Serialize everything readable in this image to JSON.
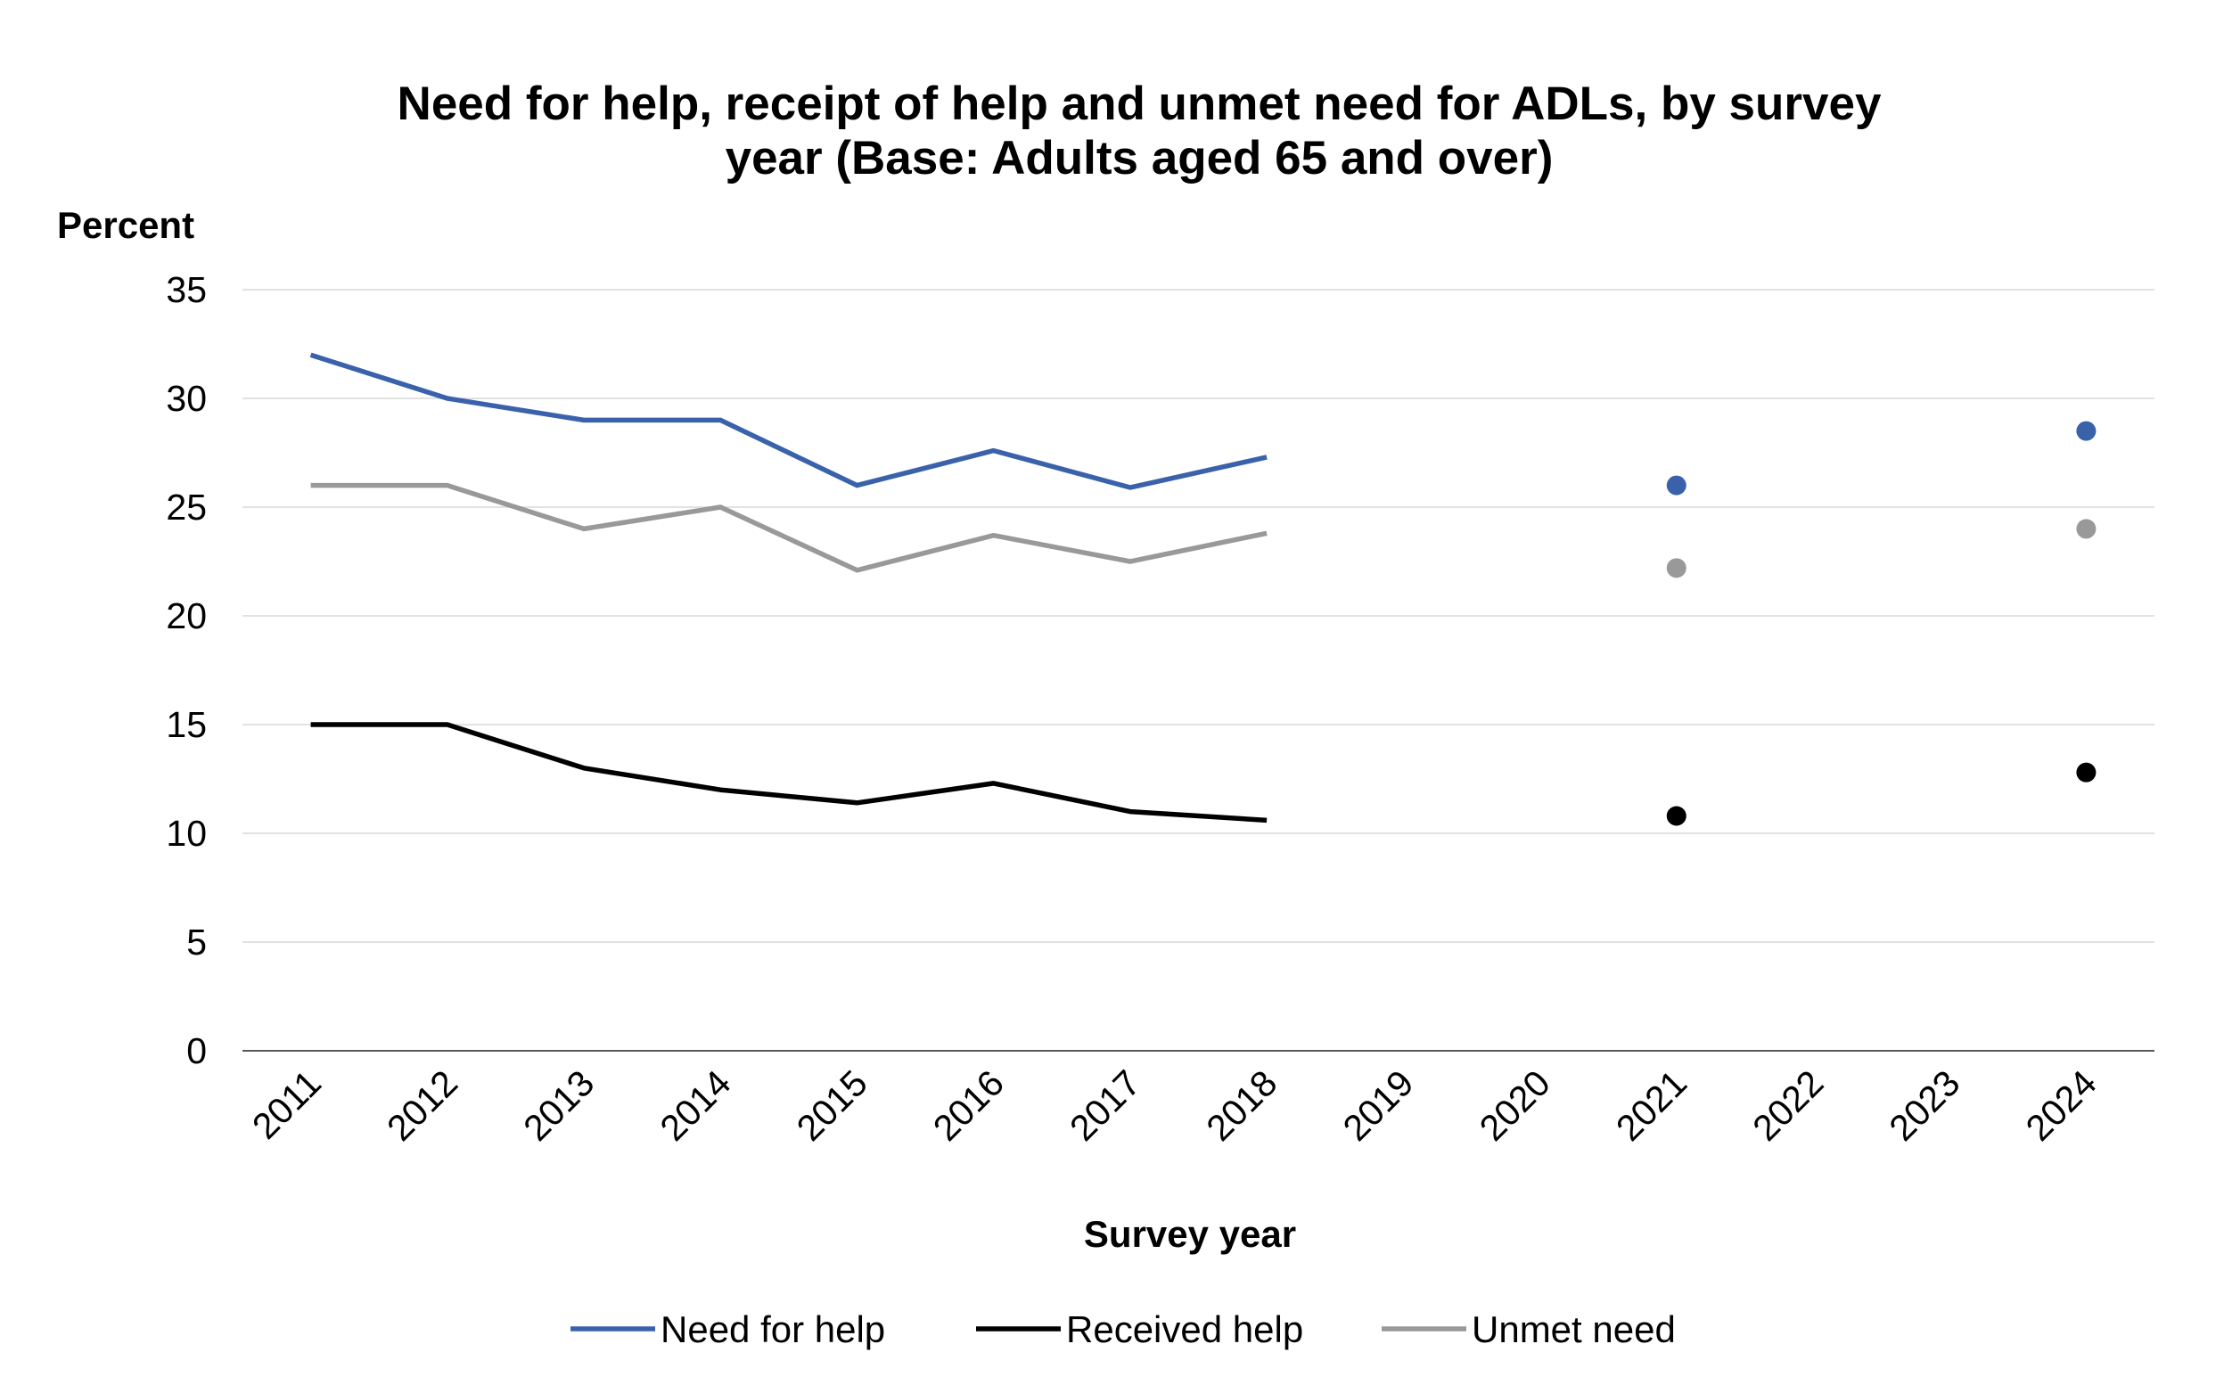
{
  "chart_data": {
    "type": "line",
    "title": "Need for help, receipt of help and unmet need for ADLs, by survey year (Base: Adults aged 65 and over)",
    "title_lines": [
      "Need for help, receipt of help and unmet need for ADLs, by survey",
      "year (Base: Adults aged 65 and over)"
    ],
    "xlabel": "Survey year",
    "ylabel": "Percent",
    "ylim": [
      0,
      35
    ],
    "yticks": [
      0,
      5,
      10,
      15,
      20,
      25,
      30,
      35
    ],
    "grid": true,
    "legend_position": "bottom",
    "categories": [
      "2011",
      "2012",
      "2013",
      "2014",
      "2015",
      "2016",
      "2017",
      "2018",
      "2019",
      "2020",
      "2021",
      "2022",
      "2023",
      "2024"
    ],
    "series": [
      {
        "name": "Need for help",
        "color": "#3a62ab",
        "values": [
          32,
          30,
          29,
          29,
          26,
          27.6,
          25.9,
          27.3,
          null,
          null,
          26,
          null,
          null,
          28.5
        ]
      },
      {
        "name": "Received help",
        "color": "#000000",
        "values": [
          15,
          15,
          13,
          12,
          11.4,
          12.3,
          11,
          10.6,
          null,
          null,
          10.8,
          null,
          null,
          12.8
        ]
      },
      {
        "name": "Unmet need",
        "color": "#999999",
        "values": [
          26,
          26,
          24,
          25,
          22.1,
          23.7,
          22.5,
          23.8,
          null,
          null,
          22.2,
          null,
          null,
          24
        ]
      }
    ]
  }
}
